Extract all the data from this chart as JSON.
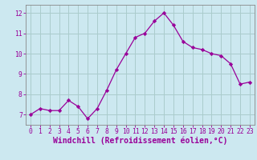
{
  "x": [
    0,
    1,
    2,
    3,
    4,
    5,
    6,
    7,
    8,
    9,
    10,
    11,
    12,
    13,
    14,
    15,
    16,
    17,
    18,
    19,
    20,
    21,
    22,
    23
  ],
  "y": [
    7.0,
    7.3,
    7.2,
    7.2,
    7.7,
    7.4,
    6.8,
    7.3,
    8.2,
    9.2,
    10.0,
    10.8,
    11.0,
    11.6,
    12.0,
    11.4,
    10.6,
    10.3,
    10.2,
    10.0,
    9.9,
    9.5,
    8.5,
    8.6
  ],
  "line_color": "#990099",
  "marker": "D",
  "marker_size": 2.2,
  "bg_color": "#cce8f0",
  "grid_color": "#aacccc",
  "xlabel": "Windchill (Refroidissement éolien,°C)",
  "xlim": [
    -0.5,
    23.5
  ],
  "ylim": [
    6.5,
    12.4
  ],
  "yticks": [
    7,
    8,
    9,
    10,
    11,
    12
  ],
  "xticks": [
    0,
    1,
    2,
    3,
    4,
    5,
    6,
    7,
    8,
    9,
    10,
    11,
    12,
    13,
    14,
    15,
    16,
    17,
    18,
    19,
    20,
    21,
    22,
    23
  ],
  "tick_color": "#990099",
  "label_color": "#990099",
  "tick_fontsize": 5.8,
  "xlabel_fontsize": 7.0,
  "spine_color": "#888888"
}
